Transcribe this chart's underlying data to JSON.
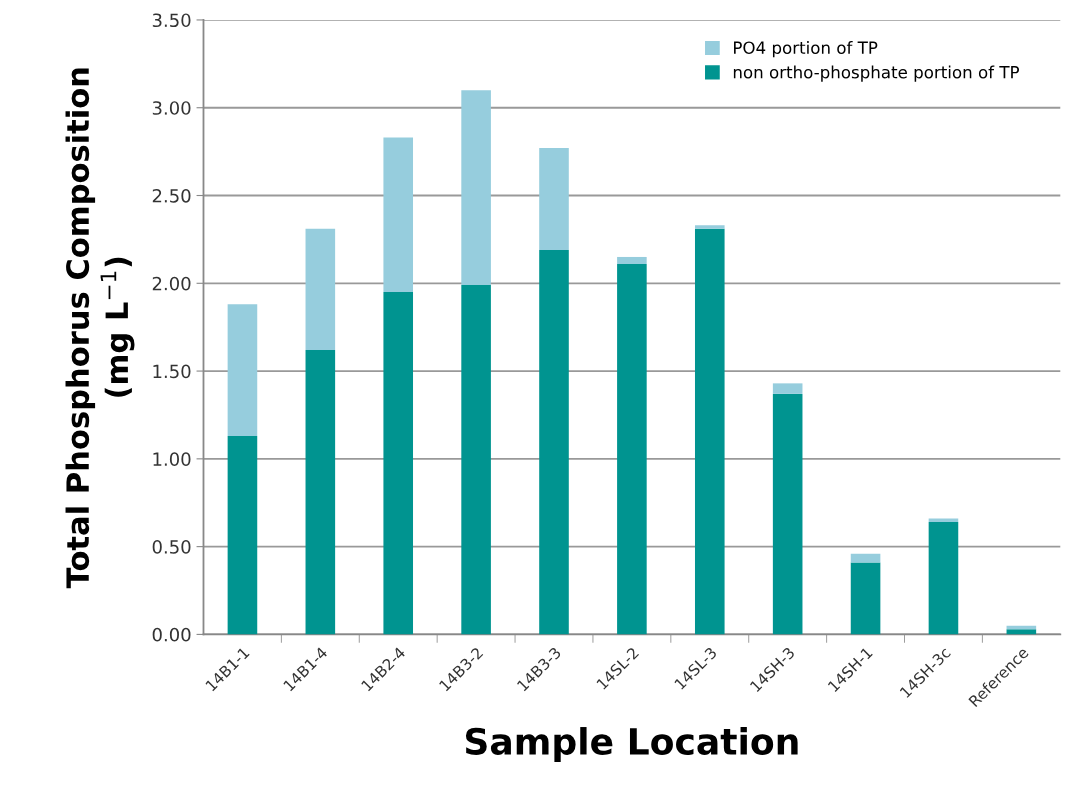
{
  "chart_data": {
    "type": "bar",
    "stacked": true,
    "categories": [
      "14B1-1",
      "14B1-4",
      "14B2-4",
      "14B3-2",
      "14B3-3",
      "14SL-2",
      "14SL-3",
      "14SH-3",
      "14SH-1",
      "14SH-3c",
      "Reference"
    ],
    "series": [
      {
        "name": "non ortho-phosphate portion of TP",
        "color": "#009490",
        "values": [
          1.13,
          1.62,
          1.95,
          1.99,
          2.19,
          2.11,
          2.31,
          1.37,
          0.41,
          0.64,
          0.03
        ]
      },
      {
        "name": "PO4 portion of TP",
        "color": "#96cddd",
        "values": [
          0.75,
          0.69,
          0.88,
          1.11,
          0.58,
          0.04,
          0.02,
          0.06,
          0.05,
          0.02,
          0.02
        ]
      }
    ],
    "xlabel": "Sample Location",
    "ylabel": "Total Phosphorus Composition\n(mg L$^{−1}$)",
    "ylim": [
      0,
      3.5
    ],
    "yticks": [
      {
        "value": 0,
        "label": "0.00"
      },
      {
        "value": 0.5,
        "label": "0.50"
      },
      {
        "value": 1,
        "label": "1.00"
      },
      {
        "value": 1.5,
        "label": "1.50"
      },
      {
        "value": 2,
        "label": "2.00"
      },
      {
        "value": 2.5,
        "label": "2.50"
      },
      {
        "value": 3,
        "label": "3.00"
      },
      {
        "value": 3.5,
        "label": "3.50"
      }
    ],
    "grid": "y",
    "legend": "top right"
  }
}
